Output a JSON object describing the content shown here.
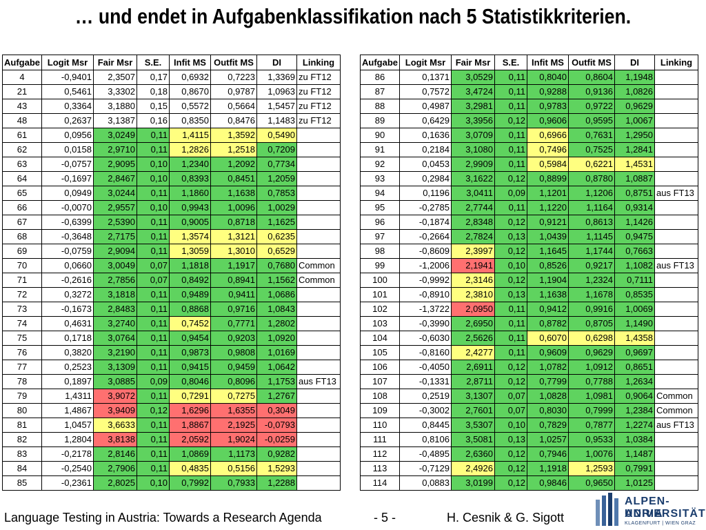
{
  "title": "… und endet in Aufgabenklassifikation nach 5 Statistikkriterien.",
  "columns": [
    "Aufgabe",
    "Logit Msr",
    "Fair Msr",
    "S.E.",
    "Infit MS",
    "Outfit MS",
    "DI",
    "Linking"
  ],
  "colors": {
    "g": "#5fd35f",
    "y": "#ffff80",
    "r": "#ff7070"
  },
  "left_rows": [
    {
      "v": [
        "4",
        "-0,9401",
        "2,3507",
        "0,17",
        "0,6932",
        "0,7223",
        "1,3369",
        "zu FT12"
      ],
      "c": [
        "",
        "",
        "",
        "",
        "",
        "",
        "",
        ""
      ]
    },
    {
      "v": [
        "21",
        "0,5461",
        "3,3302",
        "0,18",
        "0,8670",
        "0,9787",
        "1,0963",
        "zu FT12"
      ],
      "c": [
        "",
        "",
        "",
        "",
        "",
        "",
        "",
        ""
      ]
    },
    {
      "v": [
        "43",
        "0,3364",
        "3,1880",
        "0,15",
        "0,5572",
        "0,5664",
        "1,5457",
        "zu FT12"
      ],
      "c": [
        "",
        "",
        "",
        "",
        "",
        "",
        "",
        ""
      ]
    },
    {
      "v": [
        "48",
        "0,2637",
        "3,1387",
        "0,16",
        "0,8350",
        "0,8476",
        "1,1483",
        "zu FT12"
      ],
      "c": [
        "",
        "",
        "",
        "",
        "",
        "",
        "",
        ""
      ]
    },
    {
      "v": [
        "61",
        "0,0956",
        "3,0249",
        "0,11",
        "1,4115",
        "1,3592",
        "0,5490",
        ""
      ],
      "c": [
        "",
        "",
        "g",
        "g",
        "y",
        "y",
        "y",
        ""
      ]
    },
    {
      "v": [
        "62",
        "0,0158",
        "2,9710",
        "0,11",
        "1,2826",
        "1,2518",
        "0,7209",
        ""
      ],
      "c": [
        "",
        "",
        "g",
        "g",
        "y",
        "y",
        "g",
        ""
      ]
    },
    {
      "v": [
        "63",
        "-0,0757",
        "2,9095",
        "0,10",
        "1,2340",
        "1,2092",
        "0,7734",
        ""
      ],
      "c": [
        "",
        "",
        "g",
        "g",
        "g",
        "g",
        "g",
        ""
      ]
    },
    {
      "v": [
        "64",
        "-0,1697",
        "2,8467",
        "0,10",
        "0,8393",
        "0,8451",
        "1,2059",
        ""
      ],
      "c": [
        "",
        "",
        "g",
        "g",
        "g",
        "g",
        "g",
        ""
      ]
    },
    {
      "v": [
        "65",
        "0,0949",
        "3,0244",
        "0,11",
        "1,1860",
        "1,1638",
        "0,7853",
        ""
      ],
      "c": [
        "",
        "",
        "g",
        "g",
        "g",
        "g",
        "g",
        ""
      ]
    },
    {
      "v": [
        "66",
        "-0,0070",
        "2,9557",
        "0,10",
        "0,9943",
        "1,0096",
        "1,0029",
        ""
      ],
      "c": [
        "",
        "",
        "g",
        "g",
        "g",
        "g",
        "g",
        ""
      ]
    },
    {
      "v": [
        "67",
        "-0,6399",
        "2,5390",
        "0,11",
        "0,9005",
        "0,8718",
        "1,1625",
        ""
      ],
      "c": [
        "",
        "",
        "g",
        "g",
        "g",
        "g",
        "g",
        ""
      ]
    },
    {
      "v": [
        "68",
        "-0,3648",
        "2,7175",
        "0,11",
        "1,3574",
        "1,3121",
        "0,6235",
        ""
      ],
      "c": [
        "",
        "",
        "g",
        "g",
        "y",
        "y",
        "y",
        ""
      ]
    },
    {
      "v": [
        "69",
        "-0,0759",
        "2,9094",
        "0,11",
        "1,3059",
        "1,3010",
        "0,6529",
        ""
      ],
      "c": [
        "",
        "",
        "g",
        "g",
        "y",
        "y",
        "y",
        ""
      ]
    },
    {
      "v": [
        "70",
        "0,0660",
        "3,0049",
        "0,07",
        "1,1818",
        "1,1917",
        "0,7680",
        "Common"
      ],
      "c": [
        "",
        "",
        "g",
        "g",
        "g",
        "g",
        "g",
        ""
      ]
    },
    {
      "v": [
        "71",
        "-0,2616",
        "2,7856",
        "0,07",
        "0,8492",
        "0,8941",
        "1,1562",
        "Common"
      ],
      "c": [
        "",
        "",
        "g",
        "g",
        "g",
        "g",
        "g",
        ""
      ]
    },
    {
      "v": [
        "72",
        "0,3272",
        "3,1818",
        "0,11",
        "0,9489",
        "0,9411",
        "1,0686",
        ""
      ],
      "c": [
        "",
        "",
        "g",
        "g",
        "g",
        "g",
        "g",
        ""
      ]
    },
    {
      "v": [
        "73",
        "-0,1673",
        "2,8483",
        "0,11",
        "0,8868",
        "0,9716",
        "1,0843",
        ""
      ],
      "c": [
        "",
        "",
        "g",
        "g",
        "g",
        "g",
        "g",
        ""
      ]
    },
    {
      "v": [
        "74",
        "0,4631",
        "3,2740",
        "0,11",
        "0,7452",
        "0,7771",
        "1,2802",
        ""
      ],
      "c": [
        "",
        "",
        "g",
        "g",
        "y",
        "g",
        "g",
        ""
      ]
    },
    {
      "v": [
        "75",
        "0,1718",
        "3,0764",
        "0,11",
        "0,9454",
        "0,9203",
        "1,0920",
        ""
      ],
      "c": [
        "",
        "",
        "g",
        "g",
        "g",
        "g",
        "g",
        ""
      ]
    },
    {
      "v": [
        "76",
        "0,3820",
        "3,2190",
        "0,11",
        "0,9873",
        "0,9808",
        "1,0169",
        ""
      ],
      "c": [
        "",
        "",
        "g",
        "g",
        "g",
        "g",
        "g",
        ""
      ]
    },
    {
      "v": [
        "77",
        "0,2523",
        "3,1309",
        "0,11",
        "0,9415",
        "0,9459",
        "1,0642",
        ""
      ],
      "c": [
        "",
        "",
        "g",
        "g",
        "g",
        "g",
        "g",
        ""
      ]
    },
    {
      "v": [
        "78",
        "0,1897",
        "3,0885",
        "0,09",
        "0,8046",
        "0,8096",
        "1,1753",
        "aus FT13"
      ],
      "c": [
        "",
        "",
        "g",
        "g",
        "g",
        "g",
        "g",
        ""
      ]
    },
    {
      "v": [
        "79",
        "1,4311",
        "3,9072",
        "0,11",
        "0,7291",
        "0,7275",
        "1,2767",
        ""
      ],
      "c": [
        "",
        "",
        "r",
        "g",
        "y",
        "y",
        "g",
        ""
      ]
    },
    {
      "v": [
        "80",
        "1,4867",
        "3,9409",
        "0,12",
        "1,6296",
        "1,6355",
        "0,3049",
        ""
      ],
      "c": [
        "",
        "",
        "r",
        "g",
        "r",
        "r",
        "r",
        ""
      ]
    },
    {
      "v": [
        "81",
        "1,0457",
        "3,6633",
        "0,11",
        "1,8867",
        "2,1925",
        "-0,0793",
        ""
      ],
      "c": [
        "",
        "",
        "y",
        "g",
        "r",
        "r",
        "r",
        ""
      ]
    },
    {
      "v": [
        "82",
        "1,2804",
        "3,8138",
        "0,11",
        "2,0592",
        "1,9024",
        "-0,0259",
        ""
      ],
      "c": [
        "",
        "",
        "r",
        "g",
        "r",
        "r",
        "r",
        ""
      ]
    },
    {
      "v": [
        "83",
        "-0,2178",
        "2,8146",
        "0,11",
        "1,0869",
        "1,1173",
        "0,9282",
        ""
      ],
      "c": [
        "",
        "",
        "g",
        "g",
        "g",
        "g",
        "g",
        ""
      ]
    },
    {
      "v": [
        "84",
        "-0,2540",
        "2,7906",
        "0,11",
        "0,4835",
        "0,5156",
        "1,5293",
        ""
      ],
      "c": [
        "",
        "",
        "g",
        "g",
        "y",
        "y",
        "y",
        ""
      ]
    },
    {
      "v": [
        "85",
        "-0,2361",
        "2,8025",
        "0,10",
        "0,7992",
        "0,7933",
        "1,2288",
        ""
      ],
      "c": [
        "",
        "",
        "g",
        "g",
        "g",
        "g",
        "g",
        ""
      ]
    }
  ],
  "right_rows": [
    {
      "v": [
        "86",
        "0,1371",
        "3,0529",
        "0,11",
        "0,8040",
        "0,8604",
        "1,1948",
        ""
      ],
      "c": [
        "",
        "",
        "g",
        "g",
        "g",
        "g",
        "g",
        ""
      ]
    },
    {
      "v": [
        "87",
        "0,7572",
        "3,4724",
        "0,11",
        "0,9288",
        "0,9136",
        "1,0826",
        ""
      ],
      "c": [
        "",
        "",
        "g",
        "g",
        "g",
        "g",
        "g",
        ""
      ]
    },
    {
      "v": [
        "88",
        "0,4987",
        "3,2981",
        "0,11",
        "0,9783",
        "0,9722",
        "0,9629",
        ""
      ],
      "c": [
        "",
        "",
        "g",
        "g",
        "g",
        "g",
        "g",
        ""
      ]
    },
    {
      "v": [
        "89",
        "0,6429",
        "3,3956",
        "0,12",
        "0,9606",
        "0,9595",
        "1,0067",
        ""
      ],
      "c": [
        "",
        "",
        "g",
        "g",
        "g",
        "g",
        "g",
        ""
      ]
    },
    {
      "v": [
        "90",
        "0,1636",
        "3,0709",
        "0,11",
        "0,6966",
        "0,7631",
        "1,2950",
        ""
      ],
      "c": [
        "",
        "",
        "g",
        "g",
        "y",
        "g",
        "g",
        ""
      ]
    },
    {
      "v": [
        "91",
        "0,2184",
        "3,1080",
        "0,11",
        "0,7496",
        "0,7525",
        "1,2841",
        ""
      ],
      "c": [
        "",
        "",
        "g",
        "g",
        "y",
        "g",
        "g",
        ""
      ]
    },
    {
      "v": [
        "92",
        "0,0453",
        "2,9909",
        "0,11",
        "0,5984",
        "0,6221",
        "1,4531",
        ""
      ],
      "c": [
        "",
        "",
        "g",
        "g",
        "y",
        "y",
        "y",
        ""
      ]
    },
    {
      "v": [
        "93",
        "0,2984",
        "3,1622",
        "0,12",
        "0,8899",
        "0,8780",
        "1,0887",
        ""
      ],
      "c": [
        "",
        "",
        "g",
        "g",
        "g",
        "g",
        "g",
        ""
      ]
    },
    {
      "v": [
        "94",
        "0,1196",
        "3,0411",
        "0,09",
        "1,1201",
        "1,1206",
        "0,8751",
        "aus FT13"
      ],
      "c": [
        "",
        "",
        "g",
        "g",
        "g",
        "g",
        "g",
        ""
      ]
    },
    {
      "v": [
        "95",
        "-0,2785",
        "2,7744",
        "0,11",
        "1,1220",
        "1,1164",
        "0,9314",
        ""
      ],
      "c": [
        "",
        "",
        "g",
        "g",
        "g",
        "g",
        "g",
        ""
      ]
    },
    {
      "v": [
        "96",
        "-0,1874",
        "2,8348",
        "0,12",
        "0,9121",
        "0,8613",
        "1,1426",
        ""
      ],
      "c": [
        "",
        "",
        "g",
        "g",
        "g",
        "g",
        "g",
        ""
      ]
    },
    {
      "v": [
        "97",
        "-0,2664",
        "2,7824",
        "0,13",
        "1,0439",
        "1,1145",
        "0,9475",
        ""
      ],
      "c": [
        "",
        "",
        "g",
        "g",
        "g",
        "g",
        "g",
        ""
      ]
    },
    {
      "v": [
        "98",
        "-0,8609",
        "2,3997",
        "0,12",
        "1,1645",
        "1,1744",
        "0,7663",
        ""
      ],
      "c": [
        "",
        "",
        "y",
        "g",
        "g",
        "g",
        "g",
        ""
      ]
    },
    {
      "v": [
        "99",
        "-1,2006",
        "2,1941",
        "0,10",
        "0,8526",
        "0,9217",
        "1,1082",
        "aus FT13"
      ],
      "c": [
        "",
        "",
        "r",
        "g",
        "g",
        "g",
        "g",
        ""
      ]
    },
    {
      "v": [
        "100",
        "-0,9992",
        "2,3146",
        "0,12",
        "1,1904",
        "1,2324",
        "0,7111",
        ""
      ],
      "c": [
        "",
        "",
        "y",
        "g",
        "g",
        "g",
        "g",
        ""
      ]
    },
    {
      "v": [
        "101",
        "-0,8910",
        "2,3810",
        "0,13",
        "1,1638",
        "1,1678",
        "0,8535",
        ""
      ],
      "c": [
        "",
        "",
        "y",
        "g",
        "g",
        "g",
        "g",
        ""
      ]
    },
    {
      "v": [
        "102",
        "-1,3722",
        "2,0950",
        "0,11",
        "0,9412",
        "0,9916",
        "1,0069",
        ""
      ],
      "c": [
        "",
        "",
        "r",
        "g",
        "g",
        "g",
        "g",
        ""
      ]
    },
    {
      "v": [
        "103",
        "-0,3990",
        "2,6950",
        "0,11",
        "0,8782",
        "0,8705",
        "1,1490",
        ""
      ],
      "c": [
        "",
        "",
        "g",
        "g",
        "g",
        "g",
        "g",
        ""
      ]
    },
    {
      "v": [
        "104",
        "-0,6030",
        "2,5626",
        "0,11",
        "0,6070",
        "0,6298",
        "1,4358",
        ""
      ],
      "c": [
        "",
        "",
        "g",
        "g",
        "y",
        "y",
        "y",
        ""
      ]
    },
    {
      "v": [
        "105",
        "-0,8160",
        "2,4277",
        "0,11",
        "0,9609",
        "0,9629",
        "0,9697",
        ""
      ],
      "c": [
        "",
        "",
        "y",
        "g",
        "g",
        "g",
        "g",
        ""
      ]
    },
    {
      "v": [
        "106",
        "-0,4050",
        "2,6911",
        "0,12",
        "1,0782",
        "1,0912",
        "0,8651",
        ""
      ],
      "c": [
        "",
        "",
        "g",
        "g",
        "g",
        "g",
        "g",
        ""
      ]
    },
    {
      "v": [
        "107",
        "-0,1331",
        "2,8711",
        "0,12",
        "0,7799",
        "0,7788",
        "1,2634",
        ""
      ],
      "c": [
        "",
        "",
        "g",
        "g",
        "g",
        "g",
        "g",
        ""
      ]
    },
    {
      "v": [
        "108",
        "0,2519",
        "3,1307",
        "0,07",
        "1,0828",
        "1,0981",
        "0,9064",
        "Common"
      ],
      "c": [
        "",
        "",
        "g",
        "g",
        "g",
        "g",
        "g",
        ""
      ]
    },
    {
      "v": [
        "109",
        "-0,3002",
        "2,7601",
        "0,07",
        "0,8030",
        "0,7999",
        "1,2384",
        "Common"
      ],
      "c": [
        "",
        "",
        "g",
        "g",
        "g",
        "g",
        "g",
        ""
      ]
    },
    {
      "v": [
        "110",
        "0,8445",
        "3,5307",
        "0,10",
        "0,7829",
        "0,7877",
        "1,2274",
        "aus FT13"
      ],
      "c": [
        "",
        "",
        "g",
        "g",
        "g",
        "g",
        "g",
        ""
      ]
    },
    {
      "v": [
        "111",
        "0,8106",
        "3,5081",
        "0,13",
        "1,0257",
        "0,9533",
        "1,0384",
        ""
      ],
      "c": [
        "",
        "",
        "g",
        "g",
        "g",
        "g",
        "g",
        ""
      ]
    },
    {
      "v": [
        "112",
        "-0,4895",
        "2,6360",
        "0,12",
        "0,7946",
        "1,0076",
        "1,1487",
        ""
      ],
      "c": [
        "",
        "",
        "g",
        "g",
        "g",
        "g",
        "g",
        ""
      ]
    },
    {
      "v": [
        "113",
        "-0,7129",
        "2,4926",
        "0,12",
        "1,1918",
        "1,2593",
        "0,7991",
        ""
      ],
      "c": [
        "",
        "",
        "y",
        "g",
        "g",
        "y",
        "g",
        ""
      ]
    },
    {
      "v": [
        "114",
        "0,0883",
        "3,0199",
        "0,12",
        "0,9846",
        "0,9650",
        "1,0125",
        ""
      ],
      "c": [
        "",
        "",
        "g",
        "g",
        "g",
        "g",
        "g",
        ""
      ]
    }
  ],
  "footer": {
    "left": "Language Testing in Austria: Towards a Research Agenda",
    "page": "- 5 -",
    "authors": "H. Cesnik & G. Sigott"
  },
  "logo": {
    "line1": "ALPEN-ADRIA",
    "line2": "UNIVERSITÄT",
    "line3": "KLAGENFURT | WIEN GRAZ"
  }
}
